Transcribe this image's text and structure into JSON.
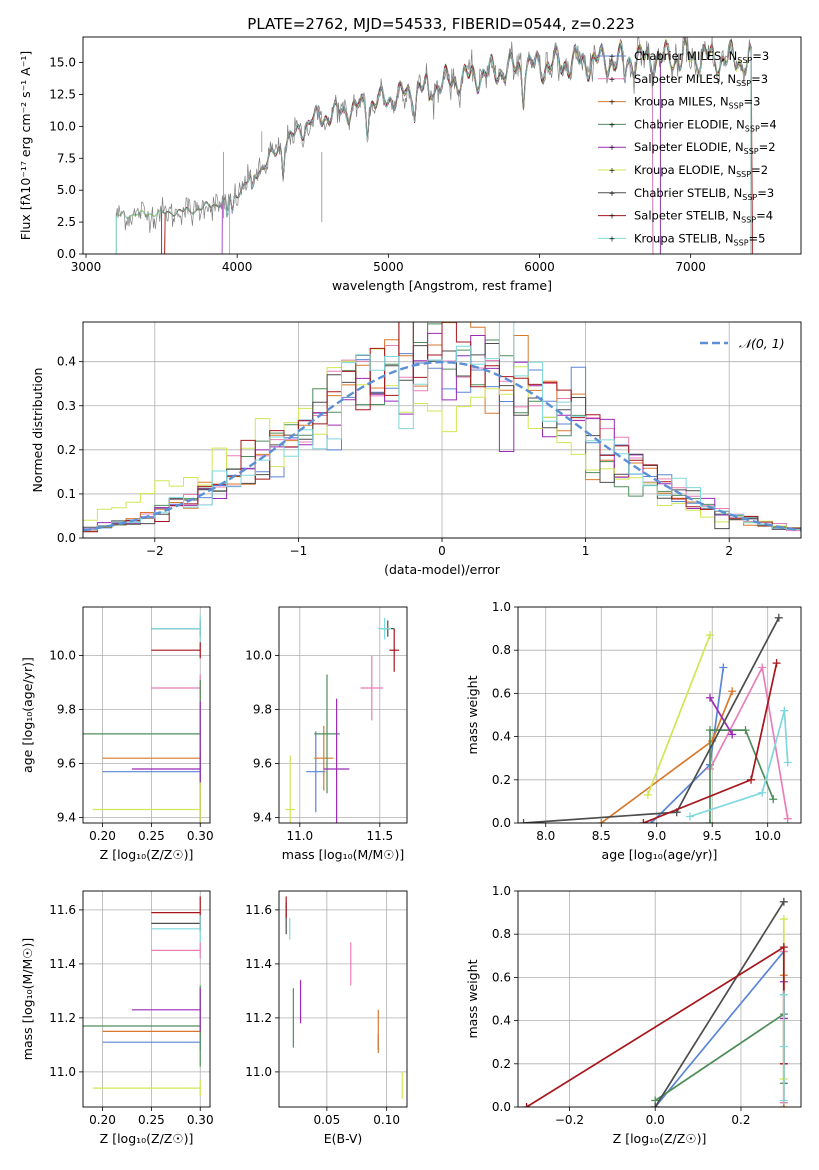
{
  "figure": {
    "title": "PLATE=2762, MJD=54533, FIBERID=0544, z=0.223"
  },
  "models": [
    {
      "name": "Chabrier MILES",
      "nssp": "3",
      "color": "#5b85d6"
    },
    {
      "name": "Salpeter MILES",
      "nssp": "3",
      "color": "#e87fb8"
    },
    {
      "name": "Kroupa MILES",
      "nssp": "3",
      "color": "#d7792d"
    },
    {
      "name": "Chabrier ELODIE",
      "nssp": "4",
      "color": "#4f8d5b"
    },
    {
      "name": "Salpeter ELODIE",
      "nssp": "2",
      "color": "#9b2ab6"
    },
    {
      "name": "Kroupa ELODIE",
      "nssp": "2",
      "color": "#cfe853"
    },
    {
      "name": "Chabrier STELIB",
      "nssp": "3",
      "color": "#4d4d4d"
    },
    {
      "name": "Salpeter STELIB",
      "nssp": "4",
      "color": "#a6161c"
    },
    {
      "name": "Kroupa STELIB",
      "nssp": "5",
      "color": "#7fd8dd"
    }
  ],
  "chart_data": [
    {
      "id": "spectrum",
      "type": "line",
      "xlabel": "wavelength [Angstrom, rest frame]",
      "ylabel": "Flux [fλ10⁻¹⁷ erg cm⁻² s⁻¹ A⁻¹]",
      "xlim": [
        2980,
        7730
      ],
      "ylim": [
        0,
        17
      ],
      "xticks": [
        3000,
        4000,
        5000,
        6000,
        7000
      ],
      "yticks": [
        0.0,
        2.5,
        5.0,
        7.5,
        10.0,
        12.5,
        15.0
      ],
      "data_color": "#808080",
      "data_trend": [
        [
          3200,
          3.0
        ],
        [
          3500,
          3.2
        ],
        [
          3700,
          3.4
        ],
        [
          3950,
          4.2
        ],
        [
          4100,
          6.0
        ],
        [
          4300,
          8.5
        ],
        [
          4500,
          10.5
        ],
        [
          4800,
          11.5
        ],
        [
          5100,
          12.5
        ],
        [
          5400,
          13.5
        ],
        [
          5800,
          14.5
        ],
        [
          6200,
          15.0
        ],
        [
          6600,
          15.2
        ],
        [
          7000,
          15.4
        ],
        [
          7300,
          15.2
        ],
        [
          7400,
          15.0
        ]
      ],
      "absorption_features": [
        [
          3934,
          0.35
        ],
        [
          3969,
          0.3
        ],
        [
          4101,
          0.2
        ],
        [
          4304,
          0.25
        ],
        [
          4861,
          0.18
        ],
        [
          5175,
          0.12
        ],
        [
          5270,
          0.08
        ],
        [
          5893,
          0.15
        ],
        [
          6563,
          0.1
        ]
      ],
      "model_ranges": [
        [
          3500,
          6750
        ],
        [
          3950,
          6750
        ],
        [
          3520,
          7400
        ],
        [
          3200,
          6800
        ],
        [
          3900,
          6800
        ],
        [
          3200,
          7400
        ],
        [
          3500,
          7400
        ],
        [
          3520,
          7410
        ],
        [
          3200,
          7400
        ]
      ],
      "legend": "upper right"
    },
    {
      "id": "residuals",
      "type": "histogram",
      "xlabel": "(data-model)/error",
      "ylabel": "Normed distribution",
      "xlim": [
        -2.5,
        2.5
      ],
      "ylim": [
        0,
        0.49
      ],
      "xticks": [
        -2,
        -1,
        0,
        1,
        2
      ],
      "yticks": [
        0.0,
        0.1,
        0.2,
        0.3,
        0.4
      ],
      "bin_width": 0.1,
      "gaussian_label": "𝒩(0, 1)",
      "gaussian_color": "#5b8fd6",
      "legend": "upper right",
      "grid": true
    },
    {
      "id": "age_vs_Z",
      "type": "errorbar",
      "xlabel": "Z [log₁₀(Z/Z☉)]",
      "ylabel": "age  [log₁₀(age/yr)]",
      "xlim": [
        0.18,
        0.31
      ],
      "ylim": [
        9.38,
        10.18
      ],
      "xticks": [
        0.2,
        0.25,
        0.3
      ],
      "yticks": [
        9.4,
        9.6,
        9.8,
        10.0
      ],
      "points": [
        {
          "model": 0,
          "x": 0.3,
          "y": 9.57,
          "xerr": [
            0.1,
            0.0
          ],
          "yerr": 0.03
        },
        {
          "model": 1,
          "x": 0.3,
          "y": 9.88,
          "xerr": [
            0.05,
            0.0
          ],
          "yerr": 0.05
        },
        {
          "model": 2,
          "x": 0.3,
          "y": 9.62,
          "xerr": [
            0.1,
            0.0
          ],
          "yerr": 0.03
        },
        {
          "model": 3,
          "x": 0.3,
          "y": 9.71,
          "xerr": [
            0.12,
            0.0
          ],
          "yerr": 0.2
        },
        {
          "model": 4,
          "x": 0.3,
          "y": 9.58,
          "xerr": [
            0.07,
            0.0
          ],
          "yerr": 0.25
        },
        {
          "model": 5,
          "x": 0.3,
          "y": 9.43,
          "xerr": [
            0.11,
            0.0
          ],
          "yerr": 0.1
        },
        {
          "model": 6,
          "x": 0.3,
          "y": 10.1,
          "xerr": [
            0.05,
            0.0
          ],
          "yerr": 0.03
        },
        {
          "model": 7,
          "x": 0.3,
          "y": 10.02,
          "xerr": [
            0.05,
            0.0
          ],
          "yerr": 0.03
        },
        {
          "model": 8,
          "x": 0.3,
          "y": 10.1,
          "xerr": [
            0.05,
            0.0
          ],
          "yerr": 0.05
        }
      ]
    },
    {
      "id": "age_vs_mass",
      "type": "errorbar",
      "xlabel": "mass [log₁₀(M/M☉)]",
      "ylabel": "",
      "xlim": [
        10.87,
        11.67
      ],
      "ylim": [
        9.38,
        10.18
      ],
      "xticks": [
        11.0,
        11.5
      ],
      "yticks": [
        9.4,
        9.6,
        9.8,
        10.0
      ],
      "points": [
        {
          "model": 0,
          "x": 11.1,
          "y": 9.57,
          "xerr": 0.06,
          "yerr": 0.15
        },
        {
          "model": 1,
          "x": 11.45,
          "y": 9.88,
          "xerr": 0.07,
          "yerr": 0.12
        },
        {
          "model": 2,
          "x": 11.15,
          "y": 9.62,
          "xerr": 0.06,
          "yerr": 0.12
        },
        {
          "model": 3,
          "x": 11.17,
          "y": 9.71,
          "xerr": 0.08,
          "yerr": 0.22
        },
        {
          "model": 4,
          "x": 11.23,
          "y": 9.58,
          "xerr": 0.08,
          "yerr": 0.26
        },
        {
          "model": 5,
          "x": 10.94,
          "y": 9.43,
          "xerr": 0.03,
          "yerr": 0.2
        },
        {
          "model": 6,
          "x": 11.55,
          "y": 10.1,
          "xerr": 0.04,
          "yerr": 0.03
        },
        {
          "model": 7,
          "x": 11.59,
          "y": 10.02,
          "xerr": 0.03,
          "yerr": 0.08
        },
        {
          "model": 8,
          "x": 11.53,
          "y": 10.1,
          "xerr": 0.04,
          "yerr": 0.04
        }
      ]
    },
    {
      "id": "weight_vs_age",
      "type": "line",
      "xlabel": "age  [log₁₀(age/yr)]",
      "ylabel": "mass weight",
      "xlim": [
        7.75,
        10.3
      ],
      "ylim": [
        0,
        1.0
      ],
      "xticks": [
        8.0,
        8.5,
        9.0,
        9.5,
        10.0
      ],
      "yticks": [
        0.0,
        0.2,
        0.4,
        0.6,
        0.8,
        1.0
      ],
      "series": [
        {
          "model": 0,
          "x": [
            8.95,
            9.48,
            9.6
          ],
          "y": [
            0.0,
            0.27,
            0.72
          ]
        },
        {
          "model": 1,
          "x": [
            9.48,
            9.95,
            10.18
          ],
          "y": [
            0.25,
            0.72,
            0.02
          ]
        },
        {
          "model": 2,
          "x": [
            8.5,
            9.5,
            9.68
          ],
          "y": [
            0.0,
            0.38,
            0.61
          ]
        },
        {
          "model": 3,
          "x": [
            9.48,
            9.48,
            9.8,
            10.05
          ],
          "y": [
            0.0,
            0.43,
            0.43,
            0.11
          ]
        },
        {
          "model": 4,
          "x": [
            9.48,
            9.68
          ],
          "y": [
            0.58,
            0.41
          ]
        },
        {
          "model": 5,
          "x": [
            8.92,
            9.48
          ],
          "y": [
            0.13,
            0.87
          ]
        },
        {
          "model": 6,
          "x": [
            7.8,
            9.18,
            10.1
          ],
          "y": [
            0.0,
            0.05,
            0.95
          ]
        },
        {
          "model": 7,
          "x": [
            8.88,
            9.85,
            10.08
          ],
          "y": [
            0.0,
            0.2,
            0.74
          ]
        },
        {
          "model": 8,
          "x": [
            9.3,
            9.95,
            10.15,
            10.18
          ],
          "y": [
            0.03,
            0.14,
            0.52,
            0.28
          ]
        }
      ]
    },
    {
      "id": "mass_vs_Z",
      "type": "errorbar",
      "xlabel": "Z [log₁₀(Z/Z☉)]",
      "ylabel": "mass [log₁₀(M/M☉)]",
      "xlim": [
        0.18,
        0.31
      ],
      "ylim": [
        10.87,
        11.67
      ],
      "xticks": [
        0.2,
        0.25,
        0.3
      ],
      "yticks": [
        11.0,
        11.2,
        11.4,
        11.6
      ],
      "points": [
        {
          "model": 0,
          "x": 0.3,
          "y": 11.11,
          "xerr": [
            0.1,
            0.0
          ],
          "yerr": 0.03
        },
        {
          "model": 1,
          "x": 0.3,
          "y": 11.45,
          "xerr": [
            0.05,
            0.0
          ],
          "yerr": 0.03
        },
        {
          "model": 2,
          "x": 0.3,
          "y": 11.15,
          "xerr": [
            0.1,
            0.0
          ],
          "yerr": 0.02
        },
        {
          "model": 3,
          "x": 0.3,
          "y": 11.17,
          "xerr": [
            0.12,
            0.0
          ],
          "yerr": 0.15
        },
        {
          "model": 4,
          "x": 0.3,
          "y": 11.23,
          "xerr": [
            0.07,
            0.0
          ],
          "yerr": 0.08
        },
        {
          "model": 5,
          "x": 0.3,
          "y": 10.94,
          "xerr": [
            0.11,
            0.0
          ],
          "yerr": 0.03
        },
        {
          "model": 6,
          "x": 0.3,
          "y": 11.55,
          "xerr": [
            0.05,
            0.0
          ],
          "yerr": 0.03
        },
        {
          "model": 7,
          "x": 0.3,
          "y": 11.59,
          "xerr": [
            0.05,
            0.0
          ],
          "yerr": 0.06
        },
        {
          "model": 8,
          "x": 0.3,
          "y": 11.53,
          "xerr": [
            0.05,
            0.0
          ],
          "yerr": 0.05
        }
      ]
    },
    {
      "id": "mass_vs_ebv",
      "type": "errorbar",
      "xlabel": "E(B-V)",
      "ylabel": "",
      "xlim": [
        0.01,
        0.117
      ],
      "ylim": [
        10.87,
        11.67
      ],
      "xticks": [
        0.05,
        0.1
      ],
      "yticks": [
        11.0,
        11.2,
        11.4,
        11.6
      ],
      "points": [
        {
          "model": 0,
          "x": 0.093,
          "y": 11.11,
          "yerr": 0.03
        },
        {
          "model": 1,
          "x": 0.07,
          "y": 11.4,
          "yerr": 0.08
        },
        {
          "model": 2,
          "x": 0.093,
          "y": 11.15,
          "yerr": 0.08
        },
        {
          "model": 3,
          "x": 0.022,
          "y": 11.2,
          "yerr": 0.11
        },
        {
          "model": 4,
          "x": 0.028,
          "y": 11.26,
          "yerr": 0.08
        },
        {
          "model": 5,
          "x": 0.113,
          "y": 10.95,
          "yerr": 0.05
        },
        {
          "model": 6,
          "x": 0.016,
          "y": 11.57,
          "yerr": 0.06
        },
        {
          "model": 7,
          "x": 0.016,
          "y": 11.61,
          "yerr": 0.04
        },
        {
          "model": 8,
          "x": 0.019,
          "y": 11.53,
          "yerr": 0.04
        }
      ]
    },
    {
      "id": "weight_vs_Z",
      "type": "line",
      "xlabel": "Z [log₁₀(Z/Z☉)]",
      "ylabel": "mass weight",
      "xlim": [
        -0.32,
        0.34
      ],
      "ylim": [
        0,
        1.0
      ],
      "xticks": [
        -0.2,
        0.0,
        0.2
      ],
      "yticks": [
        0.0,
        0.2,
        0.4,
        0.6,
        0.8,
        1.0
      ],
      "series": [
        {
          "model": 0,
          "x": [
            0.0,
            0.3
          ],
          "y": [
            0.0,
            0.72
          ]
        },
        {
          "model": 1,
          "x": [
            0.3,
            0.3
          ],
          "y": [
            0.02,
            0.72
          ]
        },
        {
          "model": 2,
          "x": [
            0.3,
            0.3
          ],
          "y": [
            0.0,
            0.61
          ]
        },
        {
          "model": 3,
          "x": [
            0.0,
            0.3,
            0.3
          ],
          "y": [
            0.03,
            0.43,
            0.11
          ]
        },
        {
          "model": 4,
          "x": [
            0.3,
            0.3
          ],
          "y": [
            0.41,
            0.58
          ]
        },
        {
          "model": 5,
          "x": [
            0.3,
            0.3
          ],
          "y": [
            0.13,
            0.87
          ]
        },
        {
          "model": 6,
          "x": [
            0.0,
            0.3
          ],
          "y": [
            0.0,
            0.95
          ]
        },
        {
          "model": 7,
          "x": [
            -0.3,
            0.3,
            0.3
          ],
          "y": [
            0.0,
            0.74,
            0.2
          ]
        },
        {
          "model": 8,
          "x": [
            0.3,
            0.3,
            0.3
          ],
          "y": [
            0.03,
            0.52,
            0.28
          ]
        }
      ]
    }
  ]
}
